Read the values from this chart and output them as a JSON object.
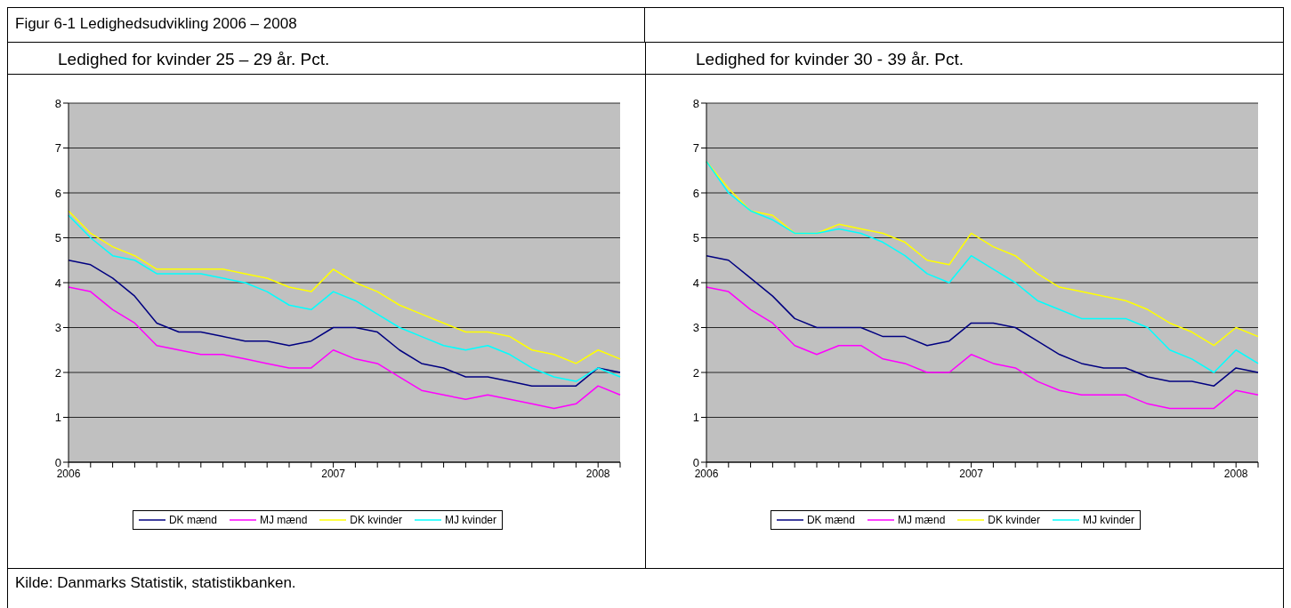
{
  "chart_data": [
    {
      "type": "line",
      "title": "Ledighed for kvinder 25 – 29 år. Pct.",
      "annotations": [
        "Figur 6-1 Ledighedsudvikling 2006 – 2008",
        "Kilde: Danmarks Statistik, statistikbanken."
      ],
      "categories": [
        "2006",
        null,
        null,
        null,
        null,
        null,
        null,
        null,
        null,
        null,
        null,
        null,
        "2007",
        null,
        null,
        null,
        null,
        null,
        null,
        null,
        null,
        null,
        null,
        null,
        "2008",
        null
      ],
      "series": [
        {
          "name": "DK mænd",
          "color": "#000080",
          "values": [
            4.5,
            4.4,
            4.1,
            3.7,
            3.1,
            2.9,
            2.9,
            2.8,
            2.7,
            2.7,
            2.6,
            2.7,
            3.0,
            3.0,
            2.9,
            2.5,
            2.2,
            2.1,
            1.9,
            1.9,
            1.8,
            1.7,
            1.7,
            1.7,
            2.1,
            2.0
          ]
        },
        {
          "name": "MJ mænd",
          "color": "#ff00ff",
          "values": [
            3.9,
            3.8,
            3.4,
            3.1,
            2.6,
            2.5,
            2.4,
            2.4,
            2.3,
            2.2,
            2.1,
            2.1,
            2.5,
            2.3,
            2.2,
            1.9,
            1.6,
            1.5,
            1.4,
            1.5,
            1.4,
            1.3,
            1.2,
            1.3,
            1.7,
            1.5
          ]
        },
        {
          "name": "DK kvinder",
          "color": "#ffff00",
          "values": [
            5.6,
            5.1,
            4.8,
            4.6,
            4.3,
            4.3,
            4.3,
            4.3,
            4.2,
            4.1,
            3.9,
            3.8,
            4.3,
            4.0,
            3.8,
            3.5,
            3.3,
            3.1,
            2.9,
            2.9,
            2.8,
            2.5,
            2.4,
            2.2,
            2.5,
            2.3
          ]
        },
        {
          "name": "MJ kvinder",
          "color": "#00ffff",
          "values": [
            5.5,
            5.0,
            4.6,
            4.5,
            4.2,
            4.2,
            4.2,
            4.1,
            4.0,
            3.8,
            3.5,
            3.4,
            3.8,
            3.6,
            3.3,
            3.0,
            2.8,
            2.6,
            2.5,
            2.6,
            2.4,
            2.1,
            1.9,
            1.8,
            2.1,
            1.9
          ]
        }
      ],
      "ylim": [
        0,
        8
      ],
      "yticks": [
        0,
        1,
        2,
        3,
        4,
        5,
        6,
        7,
        8
      ],
      "grid": "y",
      "legend": "bottom",
      "marker": "none",
      "line_style": "solid"
    },
    {
      "type": "line",
      "title": "Ledighed for kvinder 30 - 39 år. Pct.",
      "categories": [
        "2006",
        null,
        null,
        null,
        null,
        null,
        null,
        null,
        null,
        null,
        null,
        null,
        "2007",
        null,
        null,
        null,
        null,
        null,
        null,
        null,
        null,
        null,
        null,
        null,
        "2008",
        null
      ],
      "series": [
        {
          "name": "DK mænd",
          "color": "#000080",
          "values": [
            4.6,
            4.5,
            4.1,
            3.7,
            3.2,
            3.0,
            3.0,
            3.0,
            2.8,
            2.8,
            2.6,
            2.7,
            3.1,
            3.1,
            3.0,
            2.7,
            2.4,
            2.2,
            2.1,
            2.1,
            1.9,
            1.8,
            1.8,
            1.7,
            2.1,
            2.0
          ]
        },
        {
          "name": "MJ mænd",
          "color": "#ff00ff",
          "values": [
            3.9,
            3.8,
            3.4,
            3.1,
            2.6,
            2.4,
            2.6,
            2.6,
            2.3,
            2.2,
            2.0,
            2.0,
            2.4,
            2.2,
            2.1,
            1.8,
            1.6,
            1.5,
            1.5,
            1.5,
            1.3,
            1.2,
            1.2,
            1.2,
            1.6,
            1.5
          ]
        },
        {
          "name": "DK kvinder",
          "color": "#ffff00",
          "values": [
            6.7,
            6.1,
            5.6,
            5.5,
            5.1,
            5.1,
            5.3,
            5.2,
            5.1,
            4.9,
            4.5,
            4.4,
            5.1,
            4.8,
            4.6,
            4.2,
            3.9,
            3.8,
            3.7,
            3.6,
            3.4,
            3.1,
            2.9,
            2.6,
            3.0,
            2.8
          ]
        },
        {
          "name": "MJ kvinder",
          "color": "#00ffff",
          "values": [
            6.7,
            6.0,
            5.6,
            5.4,
            5.1,
            5.1,
            5.2,
            5.1,
            4.9,
            4.6,
            4.2,
            4.0,
            4.6,
            4.3,
            4.0,
            3.6,
            3.4,
            3.2,
            3.2,
            3.2,
            3.0,
            2.5,
            2.3,
            2.0,
            2.5,
            2.2
          ]
        }
      ],
      "ylim": [
        0,
        8
      ],
      "yticks": [
        0,
        1,
        2,
        3,
        4,
        5,
        6,
        7,
        8
      ],
      "grid": "y",
      "legend": "bottom",
      "marker": "none",
      "line_style": "solid"
    }
  ]
}
